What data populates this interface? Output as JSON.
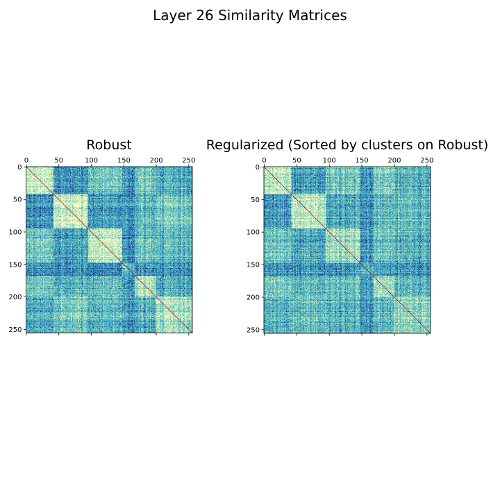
{
  "figure": {
    "title": "Layer 26 Similarity Matrices"
  },
  "chart_data": [
    {
      "type": "heatmap",
      "title": "Robust",
      "size": 256,
      "xlim": [
        0,
        256
      ],
      "ylim": [
        256,
        0
      ],
      "xticks": [
        0,
        50,
        100,
        150,
        200,
        250
      ],
      "yticks": [
        0,
        50,
        100,
        150,
        200,
        250
      ],
      "x_axis_position": "top",
      "colormap": "YlGnBu-like (pale yellow high, blue low, red diagonal)",
      "diagonal_color": "#a50026",
      "cluster_bounds": [
        0,
        42,
        95,
        148,
        168,
        200,
        256
      ],
      "cluster_similarity": [
        [
          0.85,
          0.3,
          0.55,
          0.3,
          0.55,
          0.4
        ],
        [
          0.3,
          0.85,
          0.35,
          0.3,
          0.45,
          0.55
        ],
        [
          0.55,
          0.35,
          0.8,
          0.25,
          0.5,
          0.45
        ],
        [
          0.3,
          0.3,
          0.25,
          0.45,
          0.3,
          0.3
        ],
        [
          0.55,
          0.45,
          0.5,
          0.3,
          0.75,
          0.4
        ],
        [
          0.4,
          0.55,
          0.45,
          0.3,
          0.4,
          0.7
        ]
      ]
    },
    {
      "type": "heatmap",
      "title": "Regularized (Sorted by clusters on Robust)",
      "size": 256,
      "xlim": [
        0,
        256
      ],
      "ylim": [
        256,
        0
      ],
      "xticks": [
        0,
        50,
        100,
        150,
        200,
        250
      ],
      "yticks": [
        0,
        50,
        100,
        150,
        200,
        250
      ],
      "x_axis_position": "top",
      "colormap": "YlGnBu-like (pale yellow high, blue low, red diagonal)",
      "diagonal_color": "#a50026",
      "cluster_bounds": [
        0,
        42,
        95,
        148,
        168,
        200,
        256
      ],
      "cluster_similarity": [
        [
          0.8,
          0.35,
          0.55,
          0.3,
          0.55,
          0.45
        ],
        [
          0.35,
          0.8,
          0.4,
          0.3,
          0.45,
          0.5
        ],
        [
          0.55,
          0.4,
          0.7,
          0.3,
          0.5,
          0.45
        ],
        [
          0.3,
          0.3,
          0.3,
          0.4,
          0.3,
          0.3
        ],
        [
          0.55,
          0.45,
          0.5,
          0.3,
          0.65,
          0.45
        ],
        [
          0.45,
          0.5,
          0.45,
          0.3,
          0.45,
          0.65
        ]
      ]
    }
  ]
}
